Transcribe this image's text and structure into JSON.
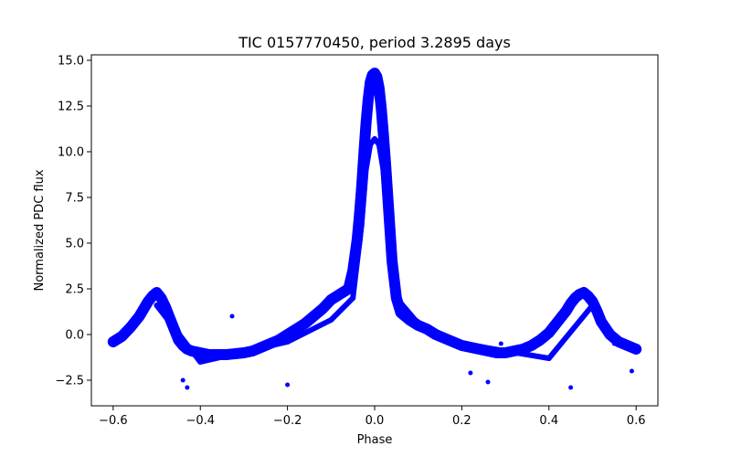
{
  "chart_data": {
    "type": "scatter",
    "title": "TIC 0157770450, period 3.2895 days",
    "xlabel": "Phase",
    "ylabel": "Normalized PDC flux",
    "xlim": [
      -0.65,
      0.65
    ],
    "ylim": [
      -3.9,
      15.3
    ],
    "xticks": [
      -0.6,
      -0.4,
      -0.2,
      0.0,
      0.2,
      0.4,
      0.6
    ],
    "xtick_labels": [
      "−0.6",
      "−0.4",
      "−0.2",
      "0.0",
      "0.2",
      "0.4",
      "0.6"
    ],
    "yticks": [
      -2.5,
      0.0,
      2.5,
      5.0,
      7.5,
      10.0,
      12.5,
      15.0
    ],
    "ytick_labels": [
      "−2.5",
      "0.0",
      "2.5",
      "5.0",
      "7.5",
      "10.0",
      "12.5",
      "15.0"
    ],
    "grid": false,
    "legend": "none",
    "marker_color": "#0000ff",
    "series": [
      {
        "x": [
          -0.6,
          -0.58,
          -0.56,
          -0.54,
          -0.52,
          -0.51,
          -0.5,
          -0.49,
          -0.48,
          -0.47,
          -0.46,
          -0.45,
          -0.44,
          -0.43,
          -0.42,
          -0.4,
          -0.38,
          -0.36,
          -0.34,
          -0.32,
          -0.3,
          -0.28,
          -0.26,
          -0.24,
          -0.22,
          -0.2,
          -0.18,
          -0.16,
          -0.14,
          -0.12,
          -0.1,
          -0.08,
          -0.06,
          -0.05,
          -0.04,
          -0.035,
          -0.03,
          -0.025,
          -0.02,
          -0.015,
          -0.01,
          -0.005,
          0.0,
          0.005,
          0.01,
          0.015,
          0.02,
          0.025,
          0.03,
          0.035,
          0.04,
          0.05,
          0.06,
          0.08,
          0.1,
          0.12,
          0.14,
          0.16,
          0.18,
          0.2,
          0.22,
          0.24,
          0.26,
          0.28,
          0.3,
          0.32,
          0.34,
          0.36,
          0.38,
          0.4,
          0.42,
          0.44,
          0.45,
          0.46,
          0.47,
          0.48,
          0.49,
          0.5,
          0.51,
          0.52,
          0.54,
          0.56,
          0.58,
          0.6
        ],
        "y": [
          -0.4,
          -0.1,
          0.4,
          1.0,
          1.8,
          2.1,
          2.3,
          2.0,
          1.5,
          0.9,
          0.3,
          -0.3,
          -0.6,
          -0.8,
          -0.9,
          -1.0,
          -1.1,
          -1.1,
          -1.1,
          -1.05,
          -1.0,
          -0.9,
          -0.7,
          -0.5,
          -0.3,
          0.0,
          0.3,
          0.6,
          1.0,
          1.4,
          1.9,
          2.2,
          2.5,
          3.5,
          5.2,
          6.5,
          8.0,
          9.8,
          11.5,
          12.8,
          13.8,
          14.2,
          14.3,
          14.1,
          13.5,
          12.4,
          11.0,
          9.4,
          7.6,
          5.8,
          4.0,
          2.0,
          1.2,
          0.8,
          0.5,
          0.3,
          0.0,
          -0.2,
          -0.4,
          -0.6,
          -0.7,
          -0.8,
          -0.9,
          -1.0,
          -1.0,
          -0.9,
          -0.8,
          -0.6,
          -0.3,
          0.1,
          0.7,
          1.3,
          1.7,
          2.0,
          2.2,
          2.3,
          2.1,
          1.8,
          1.3,
          0.7,
          0.0,
          -0.4,
          -0.6,
          -0.8
        ]
      },
      {
        "x": [
          -0.5,
          -0.4,
          -0.2,
          -0.1,
          -0.05,
          -0.03,
          -0.02,
          -0.01,
          0.0,
          0.01,
          0.02,
          0.03,
          0.05,
          0.1,
          0.2,
          0.4,
          0.5
        ],
        "y": [
          1.6,
          -1.5,
          -0.4,
          0.8,
          2.0,
          6.0,
          9.0,
          10.4,
          10.7,
          10.4,
          9.0,
          6.0,
          2.0,
          0.6,
          -0.5,
          -1.3,
          1.6
        ]
      }
    ],
    "outliers": {
      "x": [
        -0.327,
        -0.44,
        -0.43,
        -0.2,
        0.22,
        0.29,
        0.26,
        0.45,
        -0.545,
        -0.46,
        0.55,
        0.59
      ],
      "y": [
        1.0,
        -2.5,
        -2.9,
        -2.75,
        -2.1,
        -0.5,
        -2.6,
        -2.9,
        0.8,
        0.5,
        -0.5,
        -2.0
      ]
    }
  }
}
